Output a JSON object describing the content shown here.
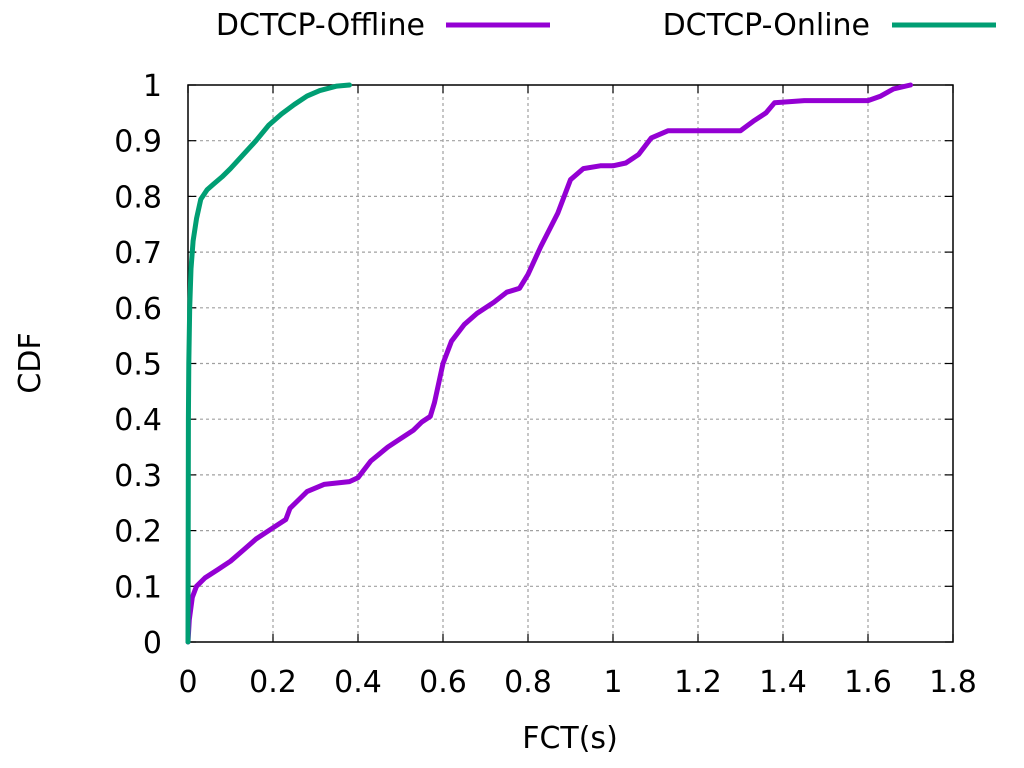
{
  "chart_data": {
    "type": "line",
    "title": "",
    "xlabel": "FCT(s)",
    "ylabel": "CDF",
    "xlim": [
      0,
      1.8
    ],
    "ylim": [
      0,
      1
    ],
    "grid": true,
    "legend_placement": "top, outside plot, horizontal",
    "x_ticks": [
      "0",
      "0.2",
      "0.4",
      "0.6",
      "0.8",
      "1",
      "1.2",
      "1.4",
      "1.6",
      "1.8"
    ],
    "y_ticks": [
      "0",
      "0.1",
      "0.2",
      "0.3",
      "0.4",
      "0.5",
      "0.6",
      "0.7",
      "0.8",
      "0.9",
      "1"
    ],
    "series": [
      {
        "name": "DCTCP-Offline",
        "color": "#9400d3",
        "points": [
          [
            0.0,
            0.0
          ],
          [
            0.003,
            0.04
          ],
          [
            0.01,
            0.08
          ],
          [
            0.02,
            0.1
          ],
          [
            0.04,
            0.115
          ],
          [
            0.07,
            0.13
          ],
          [
            0.1,
            0.145
          ],
          [
            0.13,
            0.165
          ],
          [
            0.16,
            0.185
          ],
          [
            0.2,
            0.205
          ],
          [
            0.23,
            0.22
          ],
          [
            0.24,
            0.24
          ],
          [
            0.26,
            0.255
          ],
          [
            0.28,
            0.27
          ],
          [
            0.32,
            0.283
          ],
          [
            0.38,
            0.288
          ],
          [
            0.4,
            0.295
          ],
          [
            0.43,
            0.325
          ],
          [
            0.47,
            0.35
          ],
          [
            0.5,
            0.365
          ],
          [
            0.53,
            0.38
          ],
          [
            0.55,
            0.395
          ],
          [
            0.57,
            0.405
          ],
          [
            0.58,
            0.43
          ],
          [
            0.6,
            0.5
          ],
          [
            0.62,
            0.54
          ],
          [
            0.65,
            0.57
          ],
          [
            0.68,
            0.59
          ],
          [
            0.72,
            0.61
          ],
          [
            0.75,
            0.628
          ],
          [
            0.78,
            0.635
          ],
          [
            0.8,
            0.66
          ],
          [
            0.83,
            0.71
          ],
          [
            0.87,
            0.77
          ],
          [
            0.9,
            0.83
          ],
          [
            0.93,
            0.85
          ],
          [
            0.97,
            0.855
          ],
          [
            1.0,
            0.855
          ],
          [
            1.03,
            0.86
          ],
          [
            1.06,
            0.875
          ],
          [
            1.09,
            0.905
          ],
          [
            1.13,
            0.918
          ],
          [
            1.2,
            0.918
          ],
          [
            1.3,
            0.918
          ],
          [
            1.33,
            0.935
          ],
          [
            1.36,
            0.95
          ],
          [
            1.38,
            0.968
          ],
          [
            1.45,
            0.972
          ],
          [
            1.6,
            0.972
          ],
          [
            1.63,
            0.98
          ],
          [
            1.66,
            0.993
          ],
          [
            1.7,
            1.0
          ]
        ]
      },
      {
        "name": "DCTCP-Online",
        "color": "#009e73",
        "points": [
          [
            0.0,
            0.0
          ],
          [
            0.0005,
            0.2
          ],
          [
            0.001,
            0.4
          ],
          [
            0.002,
            0.5
          ],
          [
            0.004,
            0.6
          ],
          [
            0.007,
            0.67
          ],
          [
            0.012,
            0.72
          ],
          [
            0.02,
            0.76
          ],
          [
            0.03,
            0.795
          ],
          [
            0.045,
            0.812
          ],
          [
            0.06,
            0.822
          ],
          [
            0.08,
            0.835
          ],
          [
            0.1,
            0.85
          ],
          [
            0.13,
            0.875
          ],
          [
            0.16,
            0.9
          ],
          [
            0.19,
            0.928
          ],
          [
            0.22,
            0.948
          ],
          [
            0.25,
            0.965
          ],
          [
            0.28,
            0.98
          ],
          [
            0.31,
            0.99
          ],
          [
            0.35,
            0.998
          ],
          [
            0.38,
            1.0
          ]
        ]
      }
    ]
  }
}
